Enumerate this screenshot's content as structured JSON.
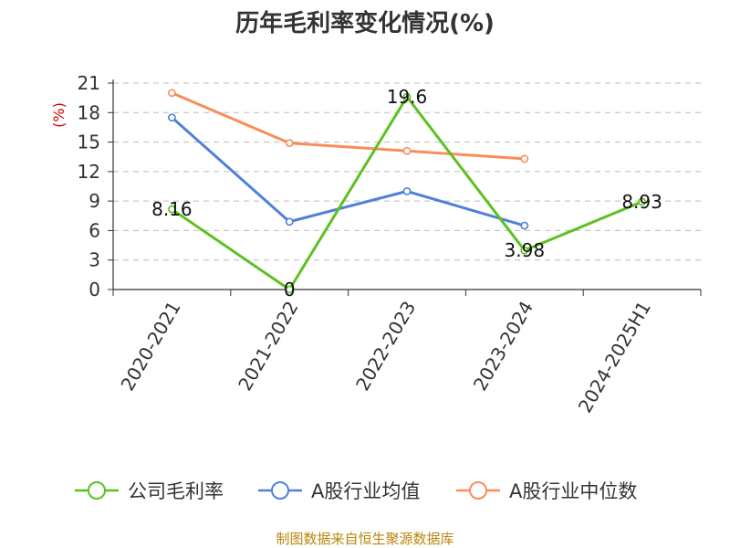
{
  "chart_data": {
    "type": "line",
    "title": "历年毛利率变化情况(%)",
    "unit_label": "(%)",
    "categories": [
      "2020-2021",
      "2021-2022",
      "2022-2023",
      "2023-2024",
      "2024-2025H1"
    ],
    "ylim": [
      0,
      21
    ],
    "yticks": [
      "0",
      "3",
      "6",
      "9",
      "12",
      "15",
      "18",
      "21"
    ],
    "grid": true,
    "legend_position": "bottom",
    "series": [
      {
        "name": "公司毛利率",
        "color": "#5cc121",
        "values": [
          8.16,
          0,
          19.6,
          3.98,
          8.93
        ],
        "labels": [
          "8.16",
          "0",
          "19.6",
          "3.98",
          "8.93"
        ]
      },
      {
        "name": "A股行业均值",
        "color": "#4f81d8",
        "values": [
          17.5,
          6.9,
          10.0,
          6.5,
          null
        ]
      },
      {
        "name": "A股行业中位数",
        "color": "#f98d5a",
        "values": [
          20.0,
          14.9,
          14.1,
          13.3,
          null
        ]
      }
    ]
  },
  "source": "制图数据来自恒生聚源数据库"
}
